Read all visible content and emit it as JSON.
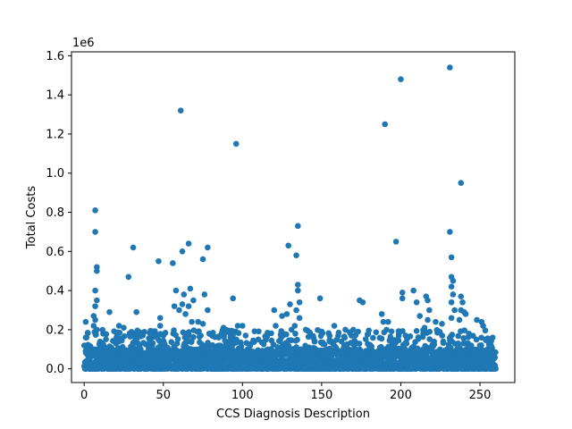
{
  "chart_data": {
    "type": "scatter",
    "title": "",
    "xlabel": "CCS Diagnosis Description",
    "ylabel": "Total Costs",
    "y_offset_label": "1e6",
    "xlim": [
      -8,
      272
    ],
    "ylim": [
      -0.07,
      1.62
    ],
    "x_ticks": [
      0,
      50,
      100,
      150,
      200,
      250
    ],
    "y_ticks": [
      0.0,
      0.2,
      0.4,
      0.6,
      0.8,
      1.0,
      1.2,
      1.4,
      1.6
    ],
    "x_tick_labels": [
      "0",
      "50",
      "100",
      "150",
      "200",
      "250"
    ],
    "y_tick_labels": [
      "0.0",
      "0.2",
      "0.4",
      "0.6",
      "0.8",
      "1.0",
      "1.2",
      "1.4",
      "1.6"
    ],
    "series_color": "#1f77b4",
    "y_units": "millions",
    "dense_band": {
      "x_min": 0,
      "x_max": 260,
      "y_min": 0.0,
      "y_max": 0.1,
      "description": "dense cluster of points at low cost across all diagnoses"
    },
    "points": [
      {
        "x": 1,
        "y": 0.24
      },
      {
        "x": 1,
        "y": 0.16
      },
      {
        "x": 2,
        "y": 0.09
      },
      {
        "x": 7,
        "y": 0.81
      },
      {
        "x": 7,
        "y": 0.7
      },
      {
        "x": 8,
        "y": 0.52
      },
      {
        "x": 8,
        "y": 0.5
      },
      {
        "x": 7,
        "y": 0.4
      },
      {
        "x": 8,
        "y": 0.35
      },
      {
        "x": 7,
        "y": 0.32
      },
      {
        "x": 6,
        "y": 0.27
      },
      {
        "x": 7,
        "y": 0.25
      },
      {
        "x": 6,
        "y": 0.22
      },
      {
        "x": 8,
        "y": 0.2
      },
      {
        "x": 7,
        "y": 0.18
      },
      {
        "x": 12,
        "y": 0.18
      },
      {
        "x": 16,
        "y": 0.29
      },
      {
        "x": 22,
        "y": 0.22
      },
      {
        "x": 25,
        "y": 0.21
      },
      {
        "x": 20,
        "y": 0.13
      },
      {
        "x": 28,
        "y": 0.47
      },
      {
        "x": 31,
        "y": 0.62
      },
      {
        "x": 33,
        "y": 0.29
      },
      {
        "x": 33,
        "y": 0.18
      },
      {
        "x": 37,
        "y": 0.17
      },
      {
        "x": 47,
        "y": 0.55
      },
      {
        "x": 48,
        "y": 0.26
      },
      {
        "x": 48,
        "y": 0.22
      },
      {
        "x": 50,
        "y": 0.17
      },
      {
        "x": 56,
        "y": 0.54
      },
      {
        "x": 57,
        "y": 0.32
      },
      {
        "x": 58,
        "y": 0.4
      },
      {
        "x": 61,
        "y": 1.32
      },
      {
        "x": 62,
        "y": 0.6
      },
      {
        "x": 63,
        "y": 0.38
      },
      {
        "x": 62,
        "y": 0.33
      },
      {
        "x": 60,
        "y": 0.3
      },
      {
        "x": 64,
        "y": 0.28
      },
      {
        "x": 66,
        "y": 0.64
      },
      {
        "x": 67,
        "y": 0.41
      },
      {
        "x": 66,
        "y": 0.32
      },
      {
        "x": 68,
        "y": 0.24
      },
      {
        "x": 69,
        "y": 0.35
      },
      {
        "x": 72,
        "y": 0.24
      },
      {
        "x": 75,
        "y": 0.56
      },
      {
        "x": 76,
        "y": 0.38
      },
      {
        "x": 75,
        "y": 0.23
      },
      {
        "x": 78,
        "y": 0.62
      },
      {
        "x": 78,
        "y": 0.3
      },
      {
        "x": 79,
        "y": 0.18
      },
      {
        "x": 85,
        "y": 0.16
      },
      {
        "x": 88,
        "y": 0.21
      },
      {
        "x": 94,
        "y": 0.36
      },
      {
        "x": 96,
        "y": 1.15
      },
      {
        "x": 97,
        "y": 0.22
      },
      {
        "x": 100,
        "y": 0.22
      },
      {
        "x": 102,
        "y": 0.17
      },
      {
        "x": 110,
        "y": 0.15
      },
      {
        "x": 120,
        "y": 0.3
      },
      {
        "x": 121,
        "y": 0.22
      },
      {
        "x": 125,
        "y": 0.27
      },
      {
        "x": 128,
        "y": 0.28
      },
      {
        "x": 129,
        "y": 0.63
      },
      {
        "x": 130,
        "y": 0.33
      },
      {
        "x": 131,
        "y": 0.2
      },
      {
        "x": 134,
        "y": 0.58
      },
      {
        "x": 135,
        "y": 0.73
      },
      {
        "x": 135,
        "y": 0.43
      },
      {
        "x": 135,
        "y": 0.4
      },
      {
        "x": 136,
        "y": 0.34
      },
      {
        "x": 134,
        "y": 0.3
      },
      {
        "x": 136,
        "y": 0.26
      },
      {
        "x": 133,
        "y": 0.22
      },
      {
        "x": 140,
        "y": 0.2
      },
      {
        "x": 149,
        "y": 0.36
      },
      {
        "x": 150,
        "y": 0.19
      },
      {
        "x": 155,
        "y": 0.17
      },
      {
        "x": 158,
        "y": 0.22
      },
      {
        "x": 165,
        "y": 0.2
      },
      {
        "x": 170,
        "y": 0.2
      },
      {
        "x": 173,
        "y": 0.19
      },
      {
        "x": 174,
        "y": 0.35
      },
      {
        "x": 176,
        "y": 0.34
      },
      {
        "x": 188,
        "y": 0.28
      },
      {
        "x": 189,
        "y": 0.24
      },
      {
        "x": 190,
        "y": 1.25
      },
      {
        "x": 192,
        "y": 0.24
      },
      {
        "x": 191,
        "y": 0.2
      },
      {
        "x": 197,
        "y": 0.65
      },
      {
        "x": 200,
        "y": 1.48
      },
      {
        "x": 201,
        "y": 0.39
      },
      {
        "x": 201,
        "y": 0.36
      },
      {
        "x": 203,
        "y": 0.17
      },
      {
        "x": 208,
        "y": 0.4
      },
      {
        "x": 210,
        "y": 0.34
      },
      {
        "x": 212,
        "y": 0.27
      },
      {
        "x": 216,
        "y": 0.37
      },
      {
        "x": 217,
        "y": 0.35
      },
      {
        "x": 218,
        "y": 0.3
      },
      {
        "x": 217,
        "y": 0.25
      },
      {
        "x": 215,
        "y": 0.21
      },
      {
        "x": 222,
        "y": 0.24
      },
      {
        "x": 226,
        "y": 0.23
      },
      {
        "x": 231,
        "y": 1.54
      },
      {
        "x": 231,
        "y": 0.7
      },
      {
        "x": 232,
        "y": 0.57
      },
      {
        "x": 232,
        "y": 0.47
      },
      {
        "x": 233,
        "y": 0.45
      },
      {
        "x": 232,
        "y": 0.42
      },
      {
        "x": 233,
        "y": 0.38
      },
      {
        "x": 232,
        "y": 0.34
      },
      {
        "x": 234,
        "y": 0.3
      },
      {
        "x": 232,
        "y": 0.26
      },
      {
        "x": 238,
        "y": 0.95
      },
      {
        "x": 238,
        "y": 0.37
      },
      {
        "x": 239,
        "y": 0.34
      },
      {
        "x": 238,
        "y": 0.3
      },
      {
        "x": 240,
        "y": 0.29
      },
      {
        "x": 241,
        "y": 0.28
      },
      {
        "x": 237,
        "y": 0.25
      },
      {
        "x": 243,
        "y": 0.18
      },
      {
        "x": 248,
        "y": 0.25
      },
      {
        "x": 251,
        "y": 0.24
      },
      {
        "x": 252,
        "y": 0.22
      },
      {
        "x": 258,
        "y": 0.16
      },
      {
        "x": 257,
        "y": 0.12
      }
    ]
  }
}
